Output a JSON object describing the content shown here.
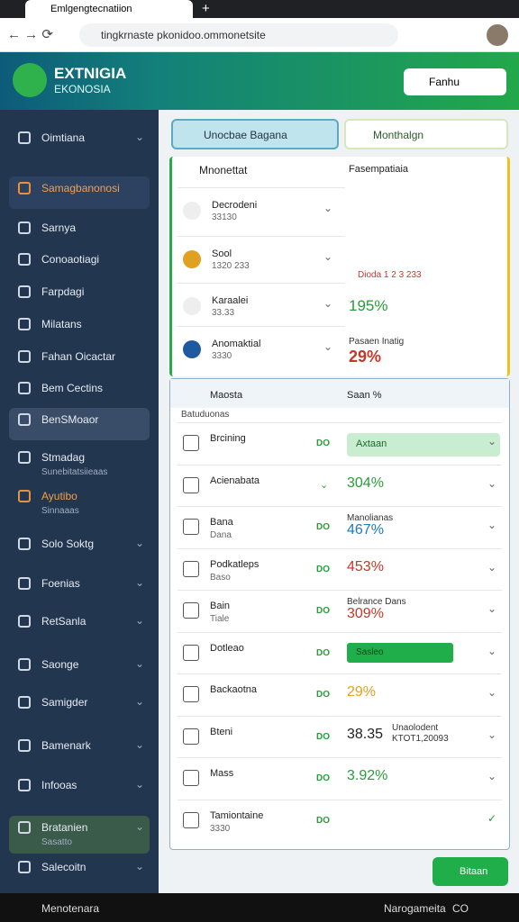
{
  "browser": {
    "tab": "Emlgengtecnatiion",
    "url": "tingkrnaste pkonidoo.ommonetsite"
  },
  "header": {
    "logo": [
      "EXTNIGIA",
      "EKONOSIA"
    ],
    "search": "Fanhu"
  },
  "sidebar": [
    {
      "label": "Oimtiana"
    },
    {
      "label": "Samagbanonosi"
    },
    {
      "label": "Sarnya"
    },
    {
      "label": "Conoaotiagi"
    },
    {
      "label": "Farpdagi"
    },
    {
      "label": "Milatans"
    },
    {
      "label": "Fahan Oicactar"
    },
    {
      "label": "Bem Cectins"
    },
    {
      "label": "BenSMoaor"
    },
    {
      "label": "Stmadag",
      "sub": "Sunebitatsiieaas"
    },
    {
      "label": "Ayutibo",
      "sub": "Sinnaaas"
    },
    {
      "label": "Solo Soktg"
    },
    {
      "label": "Foenias"
    },
    {
      "label": "RetSanla"
    },
    {
      "label": "Saonge"
    },
    {
      "label": "Samigder"
    },
    {
      "label": "Bamenark"
    },
    {
      "label": "Infooas"
    },
    {
      "label": "Bratanien",
      "sub": "Sasatto"
    },
    {
      "label": "Salecoitn"
    }
  ],
  "tabs": [
    "Unocbae Bagana",
    "Monthalgn"
  ],
  "panel1": {
    "header": "Mnonettat",
    "rows": [
      {
        "label": "Decrodeni",
        "sub": "33130"
      },
      {
        "label": "Sool",
        "sub": "1320 233"
      },
      {
        "label": "Karaalei",
        "sub": "33.33"
      },
      {
        "label": "Anomaktial",
        "sub": "3330"
      }
    ],
    "chart_title": "Fasempatiaia",
    "chart_legend": "Dioda 1 2 3 233",
    "stat1": "195%",
    "stat2_label": "Pasaen Inatig",
    "stat2": "29%"
  },
  "panel2": {
    "header": "Maosta",
    "header_right": "Saan %",
    "subheader": "Batuduonas",
    "rows": [
      {
        "label": "Brcining",
        "mid": "DO",
        "value": "Axtaan"
      },
      {
        "label": "Acienabata",
        "value": "304%"
      },
      {
        "label": "Bana",
        "sub": "Dana",
        "mid": "DO",
        "note": "Manolianas",
        "value": "467%"
      },
      {
        "label": "Podkatleps",
        "sub": "Baso",
        "mid": "DO",
        "value": "453%"
      },
      {
        "label": "Bain",
        "sub": "Tiale",
        "mid": "DO",
        "note": "Belrance Dans",
        "value": "309%"
      },
      {
        "label": "Dotleao",
        "mid": "DO",
        "value": "Sasleo"
      },
      {
        "label": "Backaotna",
        "mid": "DO",
        "value": "29%"
      },
      {
        "label": "Bteni",
        "mid": "DO",
        "value": "38.35",
        "note": "Unaolodent",
        "note2": "KTOT1,20093"
      },
      {
        "label": "Mass",
        "mid": "DO",
        "value": "3.92%"
      },
      {
        "label": "Tamiontaine",
        "sub": "3330",
        "mid": "DO"
      }
    ]
  },
  "button": "Bitaan",
  "bottom": [
    "Menotenara",
    "Narogameita",
    "CO"
  ]
}
